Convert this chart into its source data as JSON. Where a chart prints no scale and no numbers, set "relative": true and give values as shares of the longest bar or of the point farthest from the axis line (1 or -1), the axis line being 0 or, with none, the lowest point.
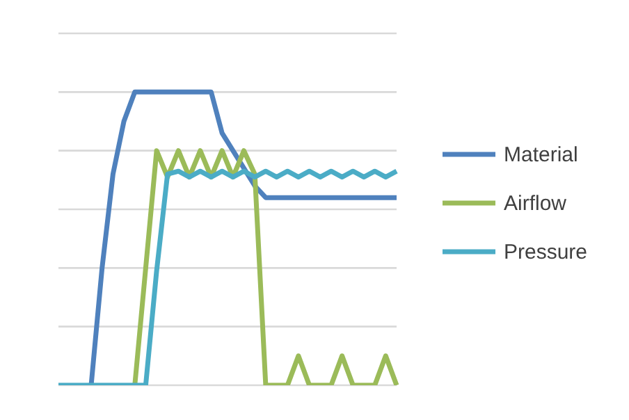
{
  "chart_data": {
    "type": "line",
    "relative": true,
    "grid": "y",
    "legend": "right",
    "marker": "none",
    "categories": [
      null,
      null,
      null,
      null,
      null,
      null,
      null,
      null,
      null,
      null,
      null,
      null,
      null,
      null,
      null,
      null,
      null,
      null,
      null,
      null,
      null,
      null,
      null,
      null,
      null,
      null,
      null,
      null,
      null,
      null,
      null,
      null
    ],
    "series": [
      {
        "name": "Material",
        "color": "#4f81bd",
        "values": [
          null,
          null,
          null,
          0,
          0.4,
          0.72,
          0.9,
          1,
          1,
          1,
          1,
          1,
          1,
          1,
          1,
          0.86,
          0.8,
          0.74,
          0.68,
          0.64,
          0.64,
          0.64,
          0.64,
          0.64,
          0.64,
          0.64,
          0.64,
          0.64,
          0.64,
          0.64,
          0.64,
          0.64
        ]
      },
      {
        "name": "Airflow",
        "color": "#9bbb59",
        "values": [
          null,
          null,
          null,
          null,
          null,
          null,
          null,
          0,
          0.4,
          0.8,
          0.71,
          0.8,
          0.71,
          0.8,
          0.71,
          0.8,
          0.71,
          0.8,
          0.72,
          0,
          0,
          0,
          0.1,
          0,
          0,
          0,
          0.1,
          0,
          0,
          0,
          0.1,
          0
        ]
      },
      {
        "name": "Pressure",
        "color": "#4bacc6",
        "values": [
          0,
          0,
          0,
          0,
          0,
          0,
          0,
          0,
          0,
          0.39,
          0.72,
          0.73,
          0.71,
          0.73,
          0.71,
          0.73,
          0.71,
          0.73,
          0.71,
          0.73,
          0.71,
          0.73,
          0.71,
          0.73,
          0.71,
          0.73,
          0.71,
          0.73,
          0.71,
          0.73,
          0.71,
          0.73
        ]
      }
    ]
  }
}
